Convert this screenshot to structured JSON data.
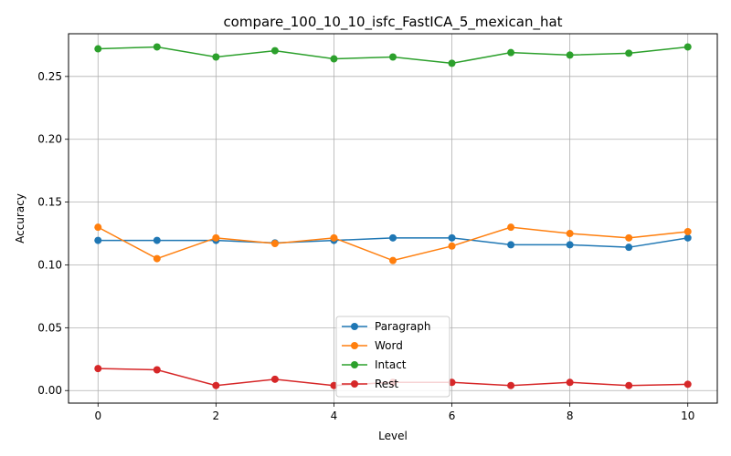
{
  "chart_data": {
    "type": "line",
    "title": "compare_100_10_10_isfc_FastICA_5_mexican_hat",
    "xlabel": "Level",
    "ylabel": "Accuracy",
    "xlim": [
      -0.5,
      10.5
    ],
    "ylim": [
      -0.01,
      0.284
    ],
    "xticks": [
      0,
      2,
      4,
      6,
      8,
      10
    ],
    "xtick_labels": [
      "0",
      "2",
      "4",
      "6",
      "8",
      "10"
    ],
    "yticks": [
      0.0,
      0.05,
      0.1,
      0.15,
      0.2,
      0.25
    ],
    "ytick_labels": [
      "0.00",
      "0.05",
      "0.10",
      "0.15",
      "0.20",
      "0.25"
    ],
    "grid": true,
    "legend_position": "lower-center",
    "x": [
      0,
      1,
      2,
      3,
      4,
      5,
      6,
      7,
      8,
      9,
      10
    ],
    "series": [
      {
        "name": "Paragraph",
        "color": "#1f77b4",
        "values": [
          0.1195,
          0.1195,
          0.1195,
          0.1175,
          0.1195,
          0.1215,
          0.1215,
          0.116,
          0.116,
          0.114,
          0.1215
        ]
      },
      {
        "name": "Word",
        "color": "#ff7f0e",
        "values": [
          0.13,
          0.105,
          0.1215,
          0.117,
          0.1215,
          0.1035,
          0.115,
          0.13,
          0.125,
          0.1215,
          0.1265
        ]
      },
      {
        "name": "Intact",
        "color": "#2ca02c",
        "values": [
          0.272,
          0.2735,
          0.2655,
          0.2705,
          0.264,
          0.2655,
          0.2605,
          0.269,
          0.267,
          0.2685,
          0.2735
        ]
      },
      {
        "name": "Rest",
        "color": "#d62728",
        "values": [
          0.0175,
          0.0165,
          0.004,
          0.009,
          0.004,
          0.0065,
          0.0065,
          0.004,
          0.0065,
          0.004,
          0.005
        ]
      }
    ]
  }
}
